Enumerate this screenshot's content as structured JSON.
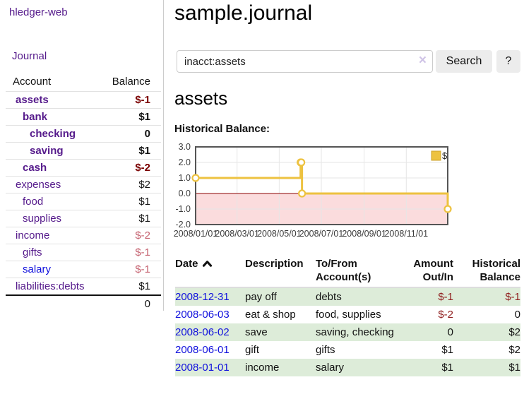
{
  "brand": "hledger-web",
  "nav": {
    "journal_label": "Journal"
  },
  "sidebar": {
    "header": {
      "account": "Account",
      "balance": "Balance"
    },
    "accounts": [
      {
        "name": "assets",
        "level": 1,
        "bold": true,
        "balance": "$-1",
        "balance_class": "neg-strong",
        "link_color": "purple"
      },
      {
        "name": "bank",
        "level": 2,
        "bold": true,
        "balance": "$1",
        "balance_class": "pos",
        "link_color": "purple"
      },
      {
        "name": "checking",
        "level": 3,
        "bold": true,
        "balance": "0",
        "balance_class": "pos",
        "link_color": "purple"
      },
      {
        "name": "saving",
        "level": 3,
        "bold": true,
        "balance": "$1",
        "balance_class": "pos",
        "link_color": "purple"
      },
      {
        "name": "cash",
        "level": 2,
        "bold": true,
        "balance": "$-2",
        "balance_class": "neg-strong",
        "link_color": "purple"
      },
      {
        "name": "expenses",
        "level": 1,
        "bold": false,
        "balance": "$2",
        "balance_class": "pos",
        "link_color": "purple"
      },
      {
        "name": "food",
        "level": 2,
        "bold": false,
        "balance": "$1",
        "balance_class": "pos",
        "link_color": "purple"
      },
      {
        "name": "supplies",
        "level": 2,
        "bold": false,
        "balance": "$1",
        "balance_class": "pos",
        "link_color": "purple"
      },
      {
        "name": "income",
        "level": 1,
        "bold": false,
        "balance": "$-2",
        "balance_class": "neg-muted",
        "link_color": "purple"
      },
      {
        "name": "gifts",
        "level": 2,
        "bold": false,
        "balance": "$-1",
        "balance_class": "neg-muted",
        "link_color": "purple"
      },
      {
        "name": "salary",
        "level": 2,
        "bold": false,
        "balance": "$-1",
        "balance_class": "neg-muted",
        "link_color": "blue"
      },
      {
        "name": "liabilities:debts",
        "level": 1,
        "bold": false,
        "balance": "$1",
        "balance_class": "pos",
        "link_color": "purple"
      }
    ],
    "total": "0"
  },
  "header": {
    "title": "sample.journal"
  },
  "search": {
    "value": "inacct:assets",
    "clear_icon": "×",
    "button_label": "Search",
    "help_label": "?"
  },
  "section": {
    "title": "assets",
    "chart_label": "Historical Balance:"
  },
  "chart_data": {
    "type": "line",
    "title": "Historical Balance",
    "step": true,
    "x": [
      "2008-01-01",
      "2008-06-01",
      "2008-06-02",
      "2008-06-03",
      "2008-12-31"
    ],
    "values": [
      1,
      2,
      2,
      0,
      -1
    ],
    "xlim": [
      "2008-01-01",
      "2008-12-31"
    ],
    "ylim": [
      -2,
      3
    ],
    "x_ticks": [
      "2008/01/01",
      "2008/03/01",
      "2008/05/01",
      "2008/07/01",
      "2008/09/01",
      "2008/11/01"
    ],
    "y_ticks": [
      3.0,
      2.0,
      1.0,
      0.0,
      -1.0,
      -2.0
    ],
    "grid": true,
    "legend_position": "top-right",
    "legend": [
      {
        "label": "$",
        "color": "#edc240"
      }
    ],
    "line_color": "#edc240",
    "marker_fill": "#ffffff",
    "negative_region_color": "#fbdcdd",
    "zero_line_color": "#8b0000",
    "grid_color": "#e6e6e6",
    "frame_color": "#555555"
  },
  "table": {
    "headers": {
      "date": "Date",
      "description": "Description",
      "tofrom": "To/From Account(s)",
      "amount": "Amount Out/In",
      "balance": "Historical Balance"
    },
    "sort_icon": "chevron-up",
    "rows": [
      {
        "date": "2008-12-31",
        "description": "pay off",
        "accounts": "debts",
        "amount": "$-1",
        "amount_neg": true,
        "balance": "$-1",
        "balance_neg": true,
        "shaded": true
      },
      {
        "date": "2008-06-03",
        "description": "eat & shop",
        "accounts": "food, supplies",
        "amount": "$-2",
        "amount_neg": true,
        "balance": "0",
        "balance_neg": false,
        "shaded": false
      },
      {
        "date": "2008-06-02",
        "description": "save",
        "accounts": "saving, checking",
        "amount": "0",
        "amount_neg": false,
        "balance": "$2",
        "balance_neg": false,
        "shaded": true
      },
      {
        "date": "2008-06-01",
        "description": "gift",
        "accounts": "gifts",
        "amount": "$1",
        "amount_neg": false,
        "balance": "$2",
        "balance_neg": false,
        "shaded": false
      },
      {
        "date": "2008-01-01",
        "description": "income",
        "accounts": "salary",
        "amount": "$1",
        "amount_neg": false,
        "balance": "$1",
        "balance_neg": false,
        "shaded": true
      }
    ]
  },
  "colors": {
    "link_purple": "#551a8b",
    "link_blue": "#1111dd",
    "negative_strong": "#7a0000",
    "negative_muted": "#c4606e",
    "table_negative": "#8f1d1d",
    "row_shade_green": "#ddecd9",
    "series_gold": "#edc240",
    "negative_area_pink": "#fbdcdd",
    "zero_line": "#8b0000",
    "button_bg": "#ececec"
  }
}
